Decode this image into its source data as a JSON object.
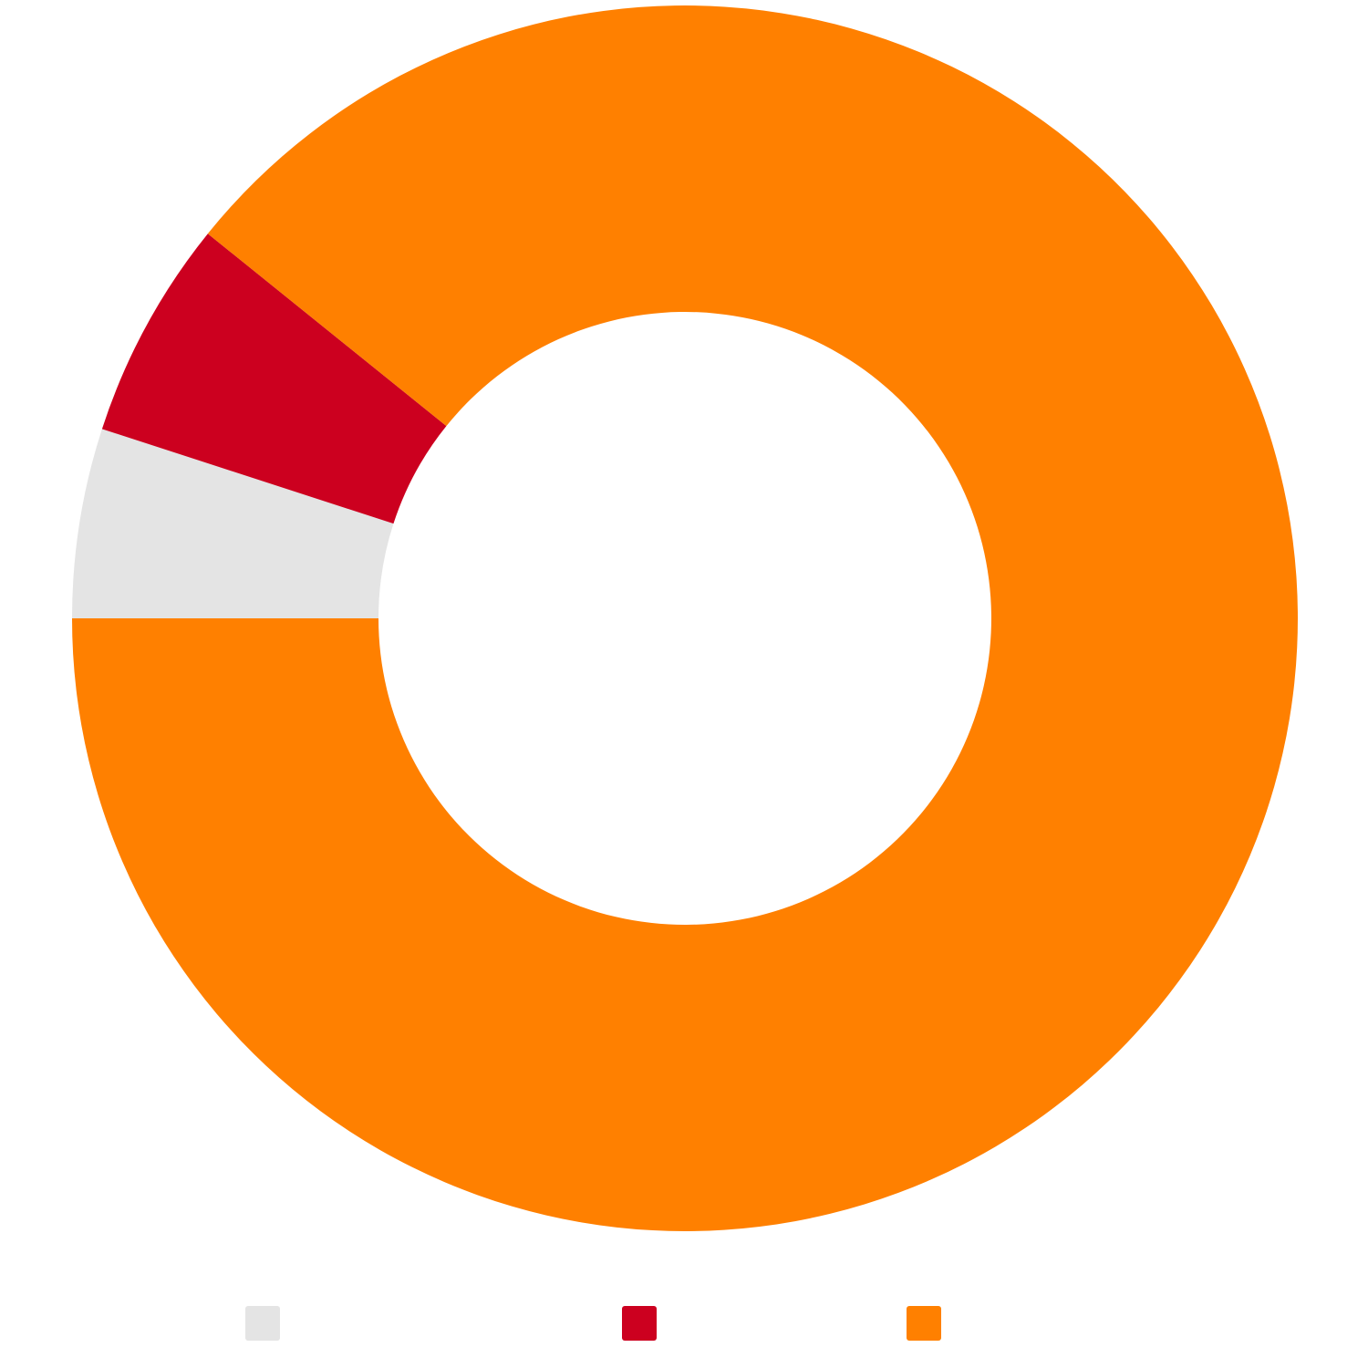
{
  "chart_data": {
    "type": "pie",
    "donut": true,
    "start_angle_deg": 180,
    "direction": "clockwise",
    "legend_position": "bottom",
    "categories": [
      "",
      "",
      ""
    ],
    "values": [
      5.0,
      5.8,
      89.2
    ],
    "colors": [
      "#e4e4e4",
      "#cc001f",
      "#ff8000"
    ]
  }
}
